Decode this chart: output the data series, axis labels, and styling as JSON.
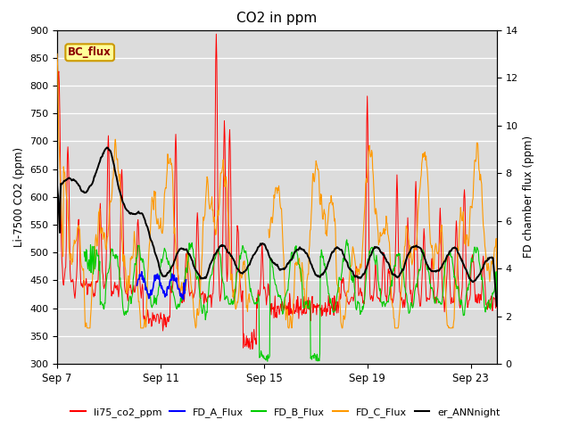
{
  "title": "CO2 in ppm",
  "ylabel_left": "Li-7500 CO2 (ppm)",
  "ylabel_right": "FD chamber flux (ppm)",
  "ylim_left": [
    300,
    900
  ],
  "ylim_right": [
    0,
    14
  ],
  "yticks_left": [
    300,
    350,
    400,
    450,
    500,
    550,
    600,
    650,
    700,
    750,
    800,
    850,
    900
  ],
  "yticks_right": [
    0,
    2,
    4,
    6,
    8,
    10,
    12,
    14
  ],
  "bg_color": "#dcdcdc",
  "fig_bg": "#ffffff",
  "legend_box_label": "BC_flux",
  "legend_box_bg": "#ffff99",
  "legend_box_border": "#cc9900",
  "series_colors": {
    "li75_co2_ppm": "#ff0000",
    "FD_A_Flux": "#0000ff",
    "FD_B_Flux": "#00cc00",
    "FD_C_Flux": "#ff9900",
    "er_ANNnight": "#000000"
  },
  "xtick_vals": [
    0,
    4,
    8,
    12,
    16
  ],
  "xtick_labels": [
    "Sep 7",
    "Sep 11",
    "Sep 15",
    "Sep 19",
    "Sep 23"
  ],
  "n_days": 17
}
